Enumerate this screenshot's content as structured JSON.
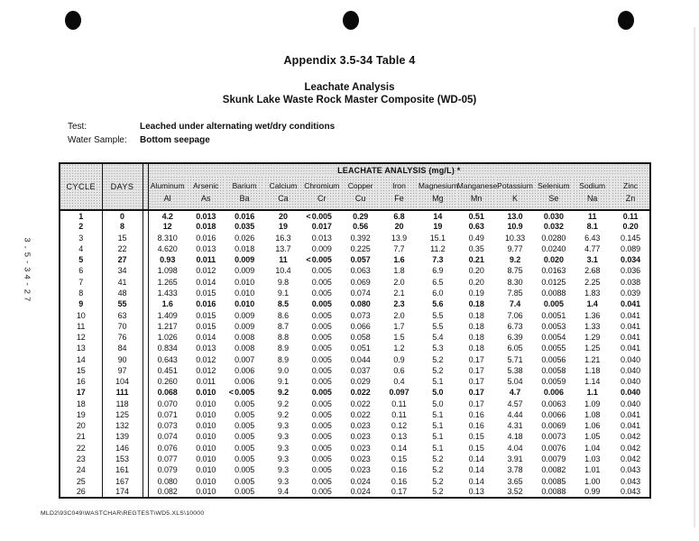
{
  "titles": {
    "appendix": "Appendix 3.5-34 Table 4",
    "main": "Leachate Analysis",
    "sub": "Skunk Lake Waste Rock Master Composite (WD-05)"
  },
  "meta": {
    "test_label": "Test:",
    "test_value": "Leached under alternating wet/dry conditions",
    "sample_label": "Water Sample:",
    "sample_value": "Bottom seepage"
  },
  "side_label": "3.5-34-27",
  "footer_path": "MLD2\\93C049\\WASTCHAR\\REGTEST\\WD5.XLS\\10000",
  "table": {
    "group_header": "LEACHATE ANALYSIS (mg/L) *",
    "cycle_label": "CYCLE",
    "days_label": "DAYS",
    "columns": [
      {
        "name": "Aluminum",
        "symbol": "Al"
      },
      {
        "name": "Arsenic",
        "symbol": "As"
      },
      {
        "name": "Barium",
        "symbol": "Ba"
      },
      {
        "name": "Calcium",
        "symbol": "Ca"
      },
      {
        "name": "Chromium",
        "symbol": "Cr"
      },
      {
        "name": "Copper",
        "symbol": "Cu"
      },
      {
        "name": "Iron",
        "symbol": "Fe"
      },
      {
        "name": "Magnesium",
        "symbol": "Mg"
      },
      {
        "name": "Manganese",
        "symbol": "Mn"
      },
      {
        "name": "Potassium",
        "symbol": "K"
      },
      {
        "name": "Selenium",
        "symbol": "Se"
      },
      {
        "name": "Sodium",
        "symbol": "Na"
      },
      {
        "name": "Zinc",
        "symbol": "Zn"
      }
    ],
    "rows": [
      {
        "cycle": "1",
        "days": "0",
        "bold": true,
        "lt": [
          4
        ],
        "values": [
          "4.2",
          "0.013",
          "0.016",
          "20",
          "0.005",
          "0.29",
          "6.8",
          "14",
          "0.51",
          "13.0",
          "0.030",
          "11",
          "0.11"
        ]
      },
      {
        "cycle": "2",
        "days": "8",
        "bold": true,
        "lt": [],
        "values": [
          "12",
          "0.018",
          "0.035",
          "19",
          "0.017",
          "0.56",
          "20",
          "19",
          "0.63",
          "10.9",
          "0.032",
          "8.1",
          "0.20"
        ]
      },
      {
        "cycle": "3",
        "days": "15",
        "bold": false,
        "lt": [],
        "values": [
          "8.310",
          "0.016",
          "0.026",
          "16.3",
          "0.013",
          "0.392",
          "13.9",
          "15.1",
          "0.49",
          "10.33",
          "0.0280",
          "6.43",
          "0.145"
        ]
      },
      {
        "cycle": "4",
        "days": "22",
        "bold": false,
        "lt": [],
        "values": [
          "4.620",
          "0.013",
          "0.018",
          "13.7",
          "0.009",
          "0.225",
          "7.7",
          "11.2",
          "0.35",
          "9.77",
          "0.0240",
          "4.77",
          "0.089"
        ]
      },
      {
        "cycle": "5",
        "days": "27",
        "bold": true,
        "lt": [
          4
        ],
        "values": [
          "0.93",
          "0.011",
          "0.009",
          "11",
          "0.005",
          "0.057",
          "1.6",
          "7.3",
          "0.21",
          "9.2",
          "0.020",
          "3.1",
          "0.034"
        ]
      },
      {
        "cycle": "6",
        "days": "34",
        "bold": false,
        "lt": [],
        "values": [
          "1.098",
          "0.012",
          "0.009",
          "10.4",
          "0.005",
          "0.063",
          "1.8",
          "6.9",
          "0.20",
          "8.75",
          "0.0163",
          "2.68",
          "0.036"
        ]
      },
      {
        "cycle": "7",
        "days": "41",
        "bold": false,
        "lt": [],
        "values": [
          "1.265",
          "0.014",
          "0.010",
          "9.8",
          "0.005",
          "0.069",
          "2.0",
          "6.5",
          "0.20",
          "8.30",
          "0.0125",
          "2.25",
          "0.038"
        ]
      },
      {
        "cycle": "8",
        "days": "48",
        "bold": false,
        "lt": [],
        "values": [
          "1.433",
          "0.015",
          "0.010",
          "9.1",
          "0.005",
          "0.074",
          "2.1",
          "6.0",
          "0.19",
          "7.85",
          "0.0088",
          "1.83",
          "0.039"
        ]
      },
      {
        "cycle": "9",
        "days": "55",
        "bold": true,
        "lt": [],
        "values": [
          "1.6",
          "0.016",
          "0.010",
          "8.5",
          "0.005",
          "0.080",
          "2.3",
          "5.6",
          "0.18",
          "7.4",
          "0.005",
          "1.4",
          "0.041"
        ]
      },
      {
        "cycle": "10",
        "days": "63",
        "bold": false,
        "lt": [],
        "values": [
          "1.409",
          "0.015",
          "0.009",
          "8.6",
          "0.005",
          "0.073",
          "2.0",
          "5.5",
          "0.18",
          "7.06",
          "0.0051",
          "1.36",
          "0.041"
        ]
      },
      {
        "cycle": "11",
        "days": "70",
        "bold": false,
        "lt": [],
        "values": [
          "1.217",
          "0.015",
          "0.009",
          "8.7",
          "0.005",
          "0.066",
          "1.7",
          "5.5",
          "0.18",
          "6.73",
          "0.0053",
          "1.33",
          "0.041"
        ]
      },
      {
        "cycle": "12",
        "days": "76",
        "bold": false,
        "lt": [],
        "values": [
          "1.026",
          "0.014",
          "0.008",
          "8.8",
          "0.005",
          "0.058",
          "1.5",
          "5.4",
          "0.18",
          "6.39",
          "0.0054",
          "1.29",
          "0.041"
        ]
      },
      {
        "cycle": "13",
        "days": "84",
        "bold": false,
        "lt": [],
        "values": [
          "0.834",
          "0.013",
          "0.008",
          "8.9",
          "0.005",
          "0.051",
          "1.2",
          "5.3",
          "0.18",
          "6.05",
          "0.0055",
          "1.25",
          "0.041"
        ]
      },
      {
        "cycle": "14",
        "days": "90",
        "bold": false,
        "lt": [],
        "values": [
          "0.643",
          "0.012",
          "0.007",
          "8.9",
          "0.005",
          "0.044",
          "0.9",
          "5.2",
          "0.17",
          "5.71",
          "0.0056",
          "1.21",
          "0.040"
        ]
      },
      {
        "cycle": "15",
        "days": "97",
        "bold": false,
        "lt": [],
        "values": [
          "0.451",
          "0.012",
          "0.006",
          "9.0",
          "0.005",
          "0.037",
          "0.6",
          "5.2",
          "0.17",
          "5.38",
          "0.0058",
          "1.18",
          "0.040"
        ]
      },
      {
        "cycle": "16",
        "days": "104",
        "bold": false,
        "lt": [],
        "values": [
          "0.260",
          "0.011",
          "0.006",
          "9.1",
          "0.005",
          "0.029",
          "0.4",
          "5.1",
          "0.17",
          "5.04",
          "0.0059",
          "1.14",
          "0.040"
        ]
      },
      {
        "cycle": "17",
        "days": "111",
        "bold": true,
        "lt": [
          2
        ],
        "values": [
          "0.068",
          "0.010",
          "0.005",
          "9.2",
          "0.005",
          "0.022",
          "0.097",
          "5.0",
          "0.17",
          "4.7",
          "0.006",
          "1.1",
          "0.040"
        ]
      },
      {
        "cycle": "18",
        "days": "118",
        "bold": false,
        "lt": [],
        "values": [
          "0.070",
          "0.010",
          "0.005",
          "9.2",
          "0.005",
          "0.022",
          "0.11",
          "5.0",
          "0.17",
          "4.57",
          "0.0063",
          "1.09",
          "0.040"
        ]
      },
      {
        "cycle": "19",
        "days": "125",
        "bold": false,
        "lt": [],
        "values": [
          "0.071",
          "0.010",
          "0.005",
          "9.2",
          "0.005",
          "0.022",
          "0.11",
          "5.1",
          "0.16",
          "4.44",
          "0.0066",
          "1.08",
          "0.041"
        ]
      },
      {
        "cycle": "20",
        "days": "132",
        "bold": false,
        "lt": [],
        "values": [
          "0.073",
          "0.010",
          "0.005",
          "9.3",
          "0.005",
          "0.023",
          "0.12",
          "5.1",
          "0.16",
          "4.31",
          "0.0069",
          "1.06",
          "0.041"
        ]
      },
      {
        "cycle": "21",
        "days": "139",
        "bold": false,
        "lt": [],
        "values": [
          "0.074",
          "0.010",
          "0.005",
          "9.3",
          "0.005",
          "0.023",
          "0.13",
          "5.1",
          "0.15",
          "4.18",
          "0.0073",
          "1.05",
          "0.042"
        ]
      },
      {
        "cycle": "22",
        "days": "146",
        "bold": false,
        "lt": [],
        "values": [
          "0.076",
          "0.010",
          "0.005",
          "9.3",
          "0.005",
          "0.023",
          "0.14",
          "5.1",
          "0.15",
          "4.04",
          "0.0076",
          "1.04",
          "0.042"
        ]
      },
      {
        "cycle": "23",
        "days": "153",
        "bold": false,
        "lt": [],
        "values": [
          "0.077",
          "0.010",
          "0.005",
          "9.3",
          "0.005",
          "0.023",
          "0.15",
          "5.2",
          "0.14",
          "3.91",
          "0.0079",
          "1.03",
          "0.042"
        ]
      },
      {
        "cycle": "24",
        "days": "161",
        "bold": false,
        "lt": [],
        "values": [
          "0.079",
          "0.010",
          "0.005",
          "9.3",
          "0.005",
          "0.023",
          "0.16",
          "5.2",
          "0.14",
          "3.78",
          "0.0082",
          "1.01",
          "0.043"
        ]
      },
      {
        "cycle": "25",
        "days": "167",
        "bold": false,
        "lt": [],
        "values": [
          "0.080",
          "0.010",
          "0.005",
          "9.3",
          "0.005",
          "0.024",
          "0.16",
          "5.2",
          "0.14",
          "3.65",
          "0.0085",
          "1.00",
          "0.043"
        ]
      },
      {
        "cycle": "26",
        "days": "174",
        "bold": false,
        "lt": [],
        "values": [
          "0.082",
          "0.010",
          "0.005",
          "9.4",
          "0.005",
          "0.024",
          "0.17",
          "5.2",
          "0.13",
          "3.52",
          "0.0088",
          "0.99",
          "0.043"
        ]
      }
    ]
  }
}
